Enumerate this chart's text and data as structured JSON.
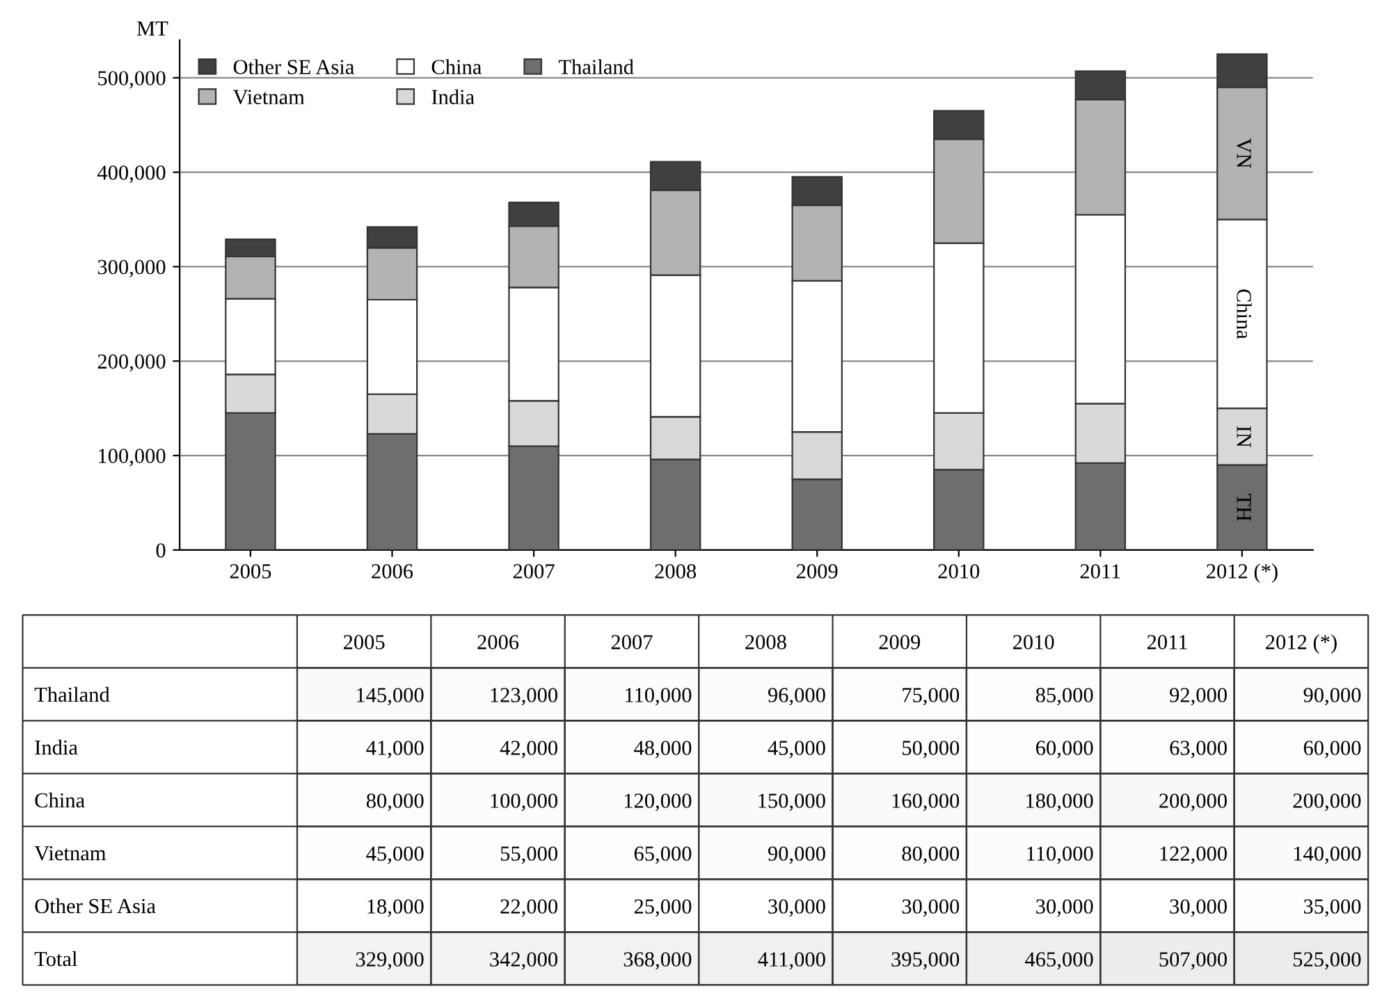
{
  "chart_data": [
    {
      "type": "bar",
      "stacked": true,
      "ylabel": "MT",
      "categories": [
        "2005",
        "2006",
        "2007",
        "2008",
        "2009",
        "2010",
        "2011",
        "2012 (*)"
      ],
      "series": [
        {
          "name": "Thailand",
          "color": "#6e6e6e",
          "values": [
            145000,
            123000,
            110000,
            96000,
            75000,
            85000,
            92000,
            90000
          ]
        },
        {
          "name": "India",
          "color": "#d9d9d9",
          "values": [
            41000,
            42000,
            48000,
            45000,
            50000,
            60000,
            63000,
            60000
          ]
        },
        {
          "name": "China",
          "color": "#ffffff",
          "values": [
            80000,
            100000,
            120000,
            150000,
            160000,
            180000,
            200000,
            200000
          ]
        },
        {
          "name": "Vietnam",
          "color": "#b3b3b3",
          "values": [
            45000,
            55000,
            65000,
            90000,
            80000,
            110000,
            122000,
            140000
          ]
        },
        {
          "name": "Other SE Asia",
          "color": "#404040",
          "values": [
            18000,
            22000,
            25000,
            30000,
            30000,
            30000,
            30000,
            35000
          ]
        }
      ],
      "ylim": [
        0,
        540000
      ],
      "yticks": [
        {
          "value": 0,
          "label": "0"
        },
        {
          "value": 100000,
          "label": "100,000"
        },
        {
          "value": 200000,
          "label": "200,000"
        },
        {
          "value": 300000,
          "label": "300,000"
        },
        {
          "value": 400000,
          "label": "400,000"
        },
        {
          "value": 500000,
          "label": "500,000"
        }
      ],
      "grid": "y",
      "legend": "top left",
      "annotations": [
        "TH",
        "IN",
        "China",
        "VN"
      ]
    },
    {
      "type": "heatmap",
      "categories": [
        "2005",
        "2006",
        "2007",
        "2008",
        "2009",
        "2010",
        "2011",
        "2012 (*)"
      ],
      "y_categories": [
        "Thailand",
        "India",
        "China",
        "Vietnam",
        "Other SE Asia",
        "Total"
      ],
      "cells": [
        [
          145000,
          123000,
          110000,
          96000,
          75000,
          85000,
          92000,
          90000
        ],
        [
          41000,
          42000,
          48000,
          45000,
          50000,
          60000,
          63000,
          60000
        ],
        [
          80000,
          100000,
          120000,
          150000,
          160000,
          180000,
          200000,
          200000
        ],
        [
          45000,
          55000,
          65000,
          90000,
          80000,
          110000,
          122000,
          140000
        ],
        [
          18000,
          22000,
          25000,
          30000,
          30000,
          30000,
          30000,
          35000
        ],
        [
          329000,
          342000,
          368000,
          411000,
          395000,
          465000,
          507000,
          525000
        ]
      ],
      "cell_labels": [
        [
          "145,000",
          "123,000",
          "110,000",
          "96,000",
          "75,000",
          "85,000",
          "92,000",
          "90,000"
        ],
        [
          "41,000",
          "42,000",
          "48,000",
          "45,000",
          "50,000",
          "60,000",
          "63,000",
          "60,000"
        ],
        [
          "80,000",
          "100,000",
          "120,000",
          "150,000",
          "160,000",
          "180,000",
          "200,000",
          "200,000"
        ],
        [
          "45,000",
          "55,000",
          "65,000",
          "90,000",
          "80,000",
          "110,000",
          "122,000",
          "140,000"
        ],
        [
          "18,000",
          "22,000",
          "25,000",
          "30,000",
          "30,000",
          "30,000",
          "30,000",
          "35,000"
        ],
        [
          "329,000",
          "342,000",
          "368,000",
          "411,000",
          "395,000",
          "465,000",
          "507,000",
          "525,000"
        ]
      ]
    }
  ]
}
